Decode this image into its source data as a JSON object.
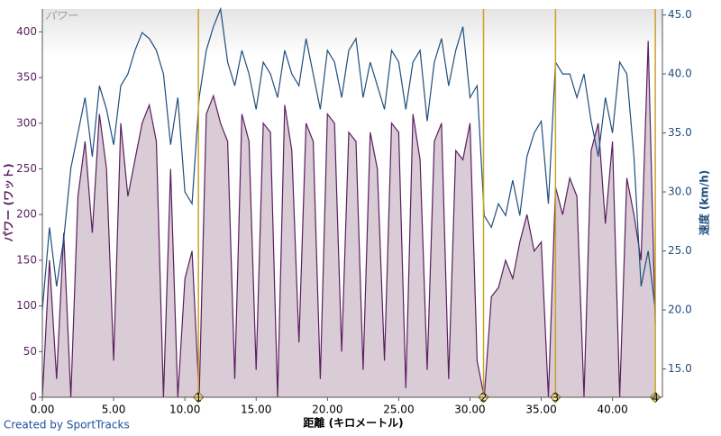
{
  "chart_data": {
    "type": "line",
    "title": "パワー",
    "x_label": "距離 (キロメートル)",
    "y_label": "パワー (ワット)",
    "y2_label": "速度 (km/h)",
    "footer": "Created by SportTracks",
    "x": [
      0,
      0.5,
      1,
      1.5,
      2,
      2.5,
      3,
      3.5,
      4,
      4.5,
      5,
      5.5,
      6,
      6.5,
      7,
      7.5,
      8,
      8.5,
      9,
      9.5,
      10,
      10.5,
      11,
      11.5,
      12,
      12.5,
      13,
      13.5,
      14,
      14.5,
      15,
      15.5,
      16,
      16.5,
      17,
      17.5,
      18,
      18.5,
      19,
      19.5,
      20,
      20.5,
      21,
      21.5,
      22,
      22.5,
      23,
      23.5,
      24,
      24.5,
      25,
      25.5,
      26,
      26.5,
      27,
      27.5,
      28,
      28.5,
      29,
      29.5,
      30,
      30.5,
      31,
      31.5,
      32,
      32.5,
      33,
      33.5,
      34,
      34.5,
      35,
      35.5,
      36,
      36.5,
      37,
      37.5,
      38,
      38.5,
      39,
      39.5,
      40,
      40.5,
      41,
      41.5,
      42,
      42.5,
      43
    ],
    "series": [
      {
        "name": "パワー",
        "color": "#5a1f5e",
        "fill": "#d9ccd6",
        "values": [
          0,
          150,
          20,
          180,
          0,
          220,
          280,
          180,
          310,
          250,
          40,
          300,
          220,
          260,
          300,
          320,
          280,
          0,
          250,
          0,
          130,
          160,
          0,
          310,
          330,
          300,
          280,
          20,
          310,
          280,
          30,
          300,
          290,
          0,
          320,
          270,
          60,
          300,
          280,
          20,
          310,
          300,
          50,
          290,
          280,
          30,
          290,
          250,
          40,
          300,
          290,
          10,
          310,
          260,
          30,
          280,
          300,
          20,
          270,
          260,
          300,
          40,
          0,
          110,
          120,
          150,
          130,
          170,
          200,
          160,
          170,
          0,
          230,
          200,
          240,
          220,
          0,
          270,
          300,
          190,
          280,
          0,
          240,
          200,
          150,
          390,
          80
        ]
      },
      {
        "name": "速度",
        "color": "#1f4e7e",
        "axis": "y2",
        "values": [
          20,
          27,
          22,
          26,
          32,
          35,
          38,
          33,
          39,
          37,
          34,
          39,
          40,
          42,
          43.5,
          43,
          42,
          40,
          34,
          38,
          30,
          29,
          38,
          42,
          44,
          45.5,
          41,
          39,
          42,
          40,
          37,
          41,
          40,
          38,
          42,
          40,
          39,
          43,
          40,
          37,
          42,
          41,
          38,
          42,
          43,
          38,
          41,
          39,
          37,
          42,
          41,
          37,
          41,
          42,
          36,
          41,
          43,
          39,
          42,
          44,
          38,
          39,
          28,
          27,
          29,
          28,
          31,
          28,
          33,
          35,
          36,
          29,
          41,
          40,
          40,
          38,
          40,
          36,
          33,
          38,
          35,
          41,
          40,
          33,
          22,
          25,
          20
        ]
      }
    ],
    "xlim": [
      0,
      43.5
    ],
    "ylim": [
      0,
      425
    ],
    "y2lim": [
      12.6,
      45.5
    ],
    "xticks": [
      {
        "value": 0,
        "label": "0.00"
      },
      {
        "value": 5,
        "label": "5.00"
      },
      {
        "value": 10,
        "label": "10.00"
      },
      {
        "value": 15,
        "label": "15.00"
      },
      {
        "value": 20,
        "label": "20.00"
      },
      {
        "value": 25,
        "label": "25.00"
      },
      {
        "value": 30,
        "label": "30.00"
      },
      {
        "value": 35,
        "label": "35.00"
      },
      {
        "value": 40,
        "label": "40.00"
      }
    ],
    "yticks": [
      0,
      50,
      100,
      150,
      200,
      250,
      300,
      350,
      400
    ],
    "y2ticks": [
      {
        "value": 15,
        "label": "15.0"
      },
      {
        "value": 20,
        "label": "20.0"
      },
      {
        "value": 25,
        "label": "25.0"
      },
      {
        "value": 30,
        "label": "30.0"
      },
      {
        "value": 35,
        "label": "35.0"
      },
      {
        "value": 40,
        "label": "40.0"
      },
      {
        "value": 45,
        "label": "45.0"
      }
    ],
    "laps": [
      {
        "x": 10.95,
        "label": "1"
      },
      {
        "x": 30.95,
        "label": "2"
      },
      {
        "x": 36,
        "label": "3"
      },
      {
        "x": 43,
        "label": "4"
      }
    ],
    "lap_color": "#c9a227"
  }
}
